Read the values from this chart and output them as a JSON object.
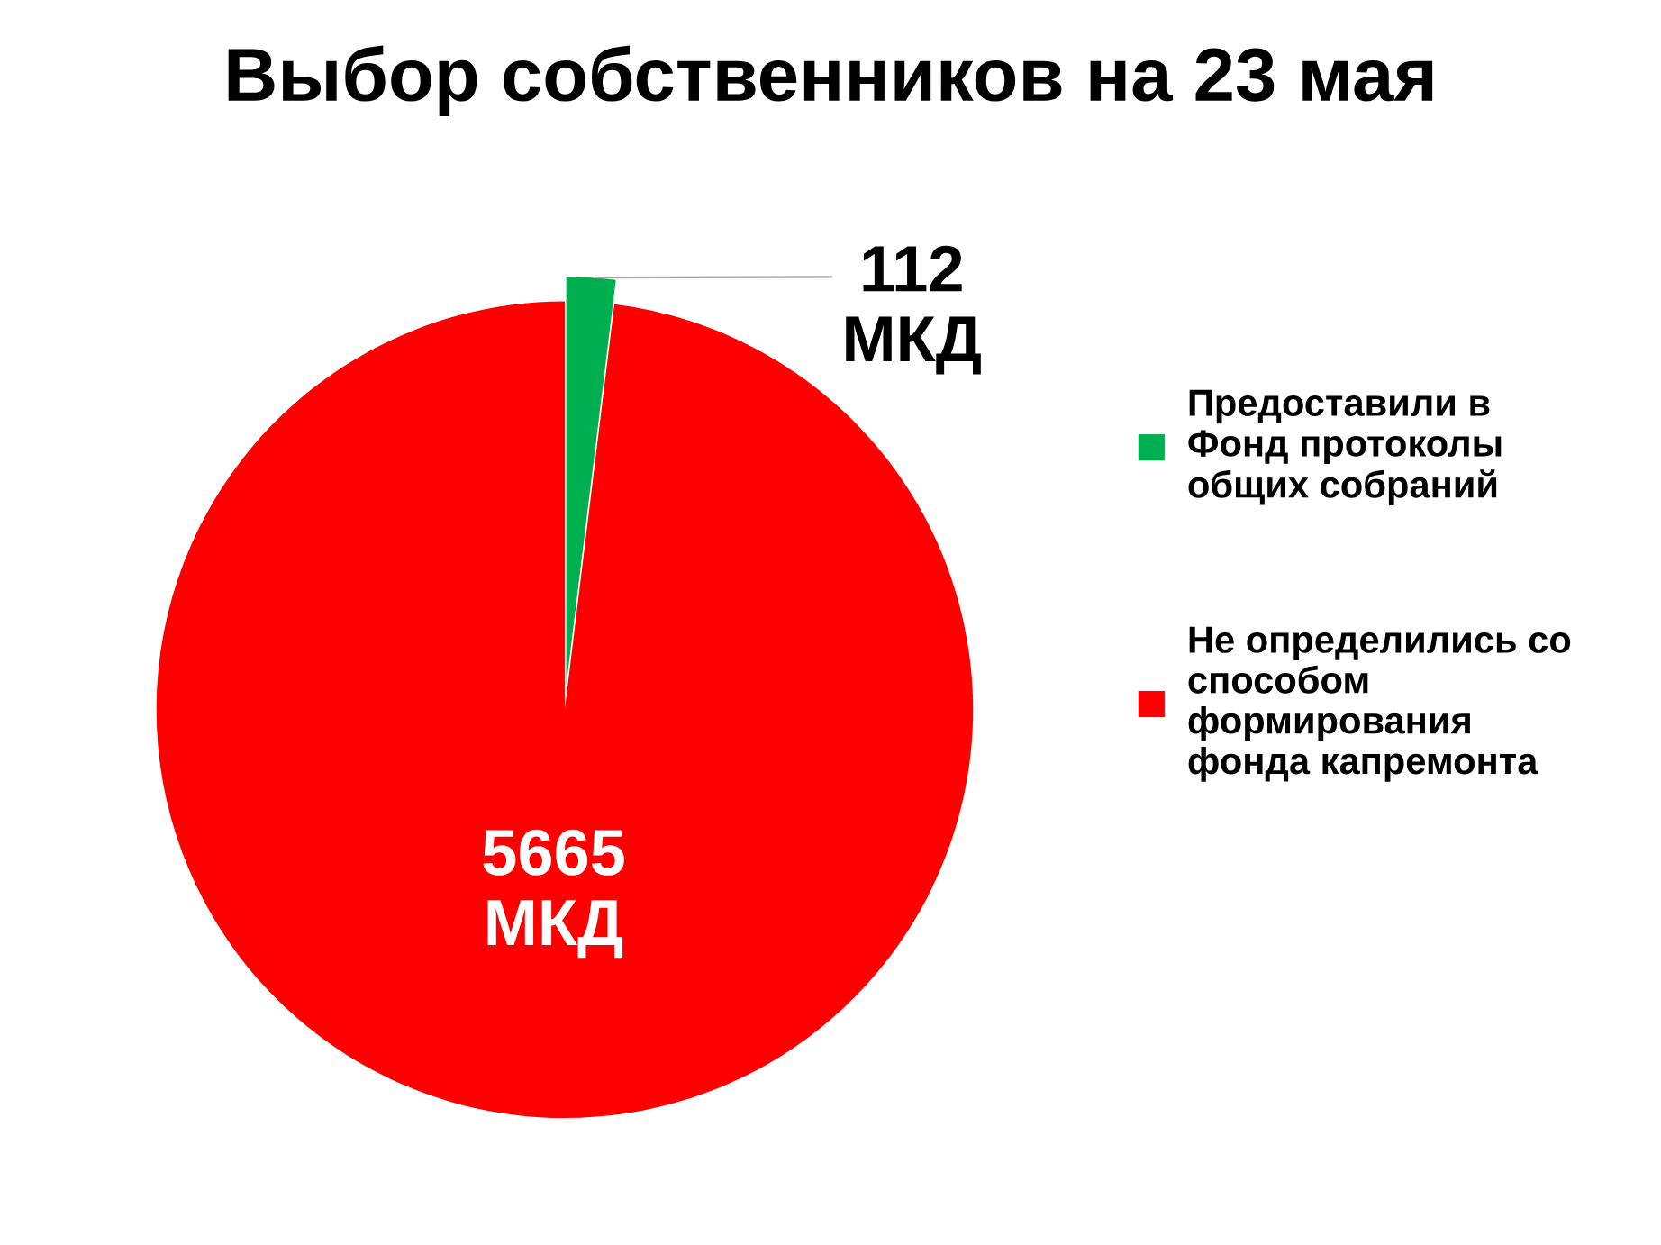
{
  "chart_data": {
    "type": "pie",
    "title": "Выбор собственников на 23 мая",
    "categories": [
      "Предоставили в\nФонд протоколы\nобщих собраний",
      "Не определились со\nспособом\nформирования\nфонда капремонта"
    ],
    "values": [
      112,
      5665
    ],
    "colors": [
      "#00b050",
      "#ff0000"
    ],
    "value_labels": [
      "112\nМКД",
      "5665\nМКД"
    ],
    "legend": "right"
  }
}
